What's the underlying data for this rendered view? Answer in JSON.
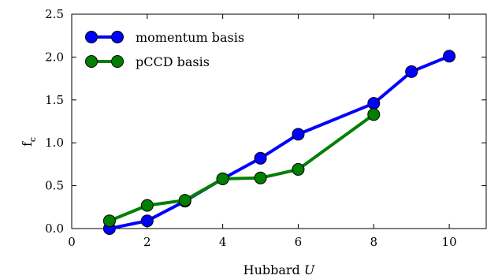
{
  "chart_data": {
    "type": "line",
    "xlabel": "Hubbard U",
    "xlabel_parts": {
      "text": "Hubbard ",
      "var": "U"
    },
    "ylabel": "f_c",
    "ylabel_parts": {
      "base": "f",
      "sub": "c"
    },
    "xlim": [
      0,
      11
    ],
    "ylim": [
      0,
      2.5
    ],
    "xticks": [
      0,
      2,
      4,
      6,
      8,
      10
    ],
    "xtick_labels": [
      "0",
      "2",
      "4",
      "6",
      "8",
      "10"
    ],
    "yticks": [
      0,
      0.5,
      1.0,
      1.5,
      2.0,
      2.5
    ],
    "ytick_labels": [
      "0.0",
      "0.5",
      "1.0",
      "1.5",
      "2.0",
      "2.5"
    ],
    "grid": false,
    "legend_position": "top-left",
    "series": [
      {
        "name": "momentum basis",
        "color": "#0000ff",
        "x": [
          1,
          2,
          3,
          4,
          5,
          6,
          8,
          9,
          10
        ],
        "y": [
          0.0,
          0.09,
          0.32,
          0.58,
          0.82,
          1.1,
          1.46,
          1.83,
          2.01
        ]
      },
      {
        "name": "pCCD basis",
        "color": "#008000",
        "x": [
          1,
          2,
          3,
          4,
          5,
          6,
          8
        ],
        "y": [
          0.09,
          0.27,
          0.33,
          0.58,
          0.59,
          0.69,
          1.33
        ]
      }
    ]
  }
}
